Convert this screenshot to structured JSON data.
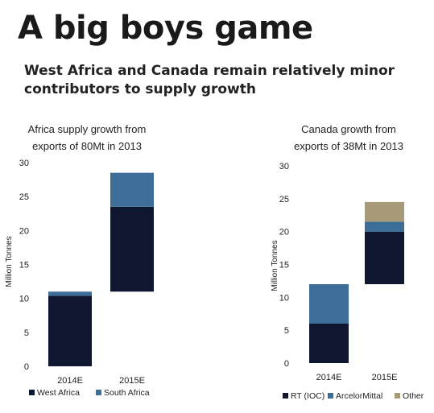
{
  "header": {
    "title": "A big boys game",
    "subtitle": "West Africa and Canada remain relatively minor contributors to supply growth"
  },
  "chart_data": [
    {
      "type": "bar",
      "stacked": "waterfall",
      "title_lines": [
        "Africa supply growth from",
        "exports of 80Mt in 2013"
      ],
      "ylabel": "Million Tonnes",
      "ylim": [
        0,
        30
      ],
      "yticks": [
        0,
        5,
        10,
        15,
        20,
        25,
        30
      ],
      "categories": [
        "2014E",
        "2015E"
      ],
      "series": [
        {
          "name": "West Africa",
          "color": "#0f1730",
          "values": [
            10.4,
            12.5
          ]
        },
        {
          "name": "South Africa",
          "color": "#3d6e9a",
          "values": [
            0.6,
            5.0
          ]
        }
      ],
      "base": [
        0,
        11
      ],
      "legend_position": "bottom",
      "grid": false
    },
    {
      "type": "bar",
      "stacked": "waterfall",
      "title_lines": [
        "Canada  growth from",
        "exports of 38Mt in 2013"
      ],
      "ylabel": "Million Tonnes",
      "ylim": [
        0,
        30
      ],
      "yticks": [
        0,
        5,
        10,
        15,
        20,
        25,
        30
      ],
      "categories": [
        "2014E",
        "2015E"
      ],
      "series": [
        {
          "name": "RT (IOC)",
          "color": "#0f1730",
          "values": [
            6,
            8
          ]
        },
        {
          "name": "ArcelorMittal",
          "color": "#3d6e9a",
          "values": [
            6,
            1.5
          ]
        },
        {
          "name": "Other",
          "color": "#a69a78",
          "values": [
            0,
            3
          ]
        }
      ],
      "base": [
        0,
        12
      ],
      "legend_position": "bottom",
      "grid": false
    }
  ]
}
